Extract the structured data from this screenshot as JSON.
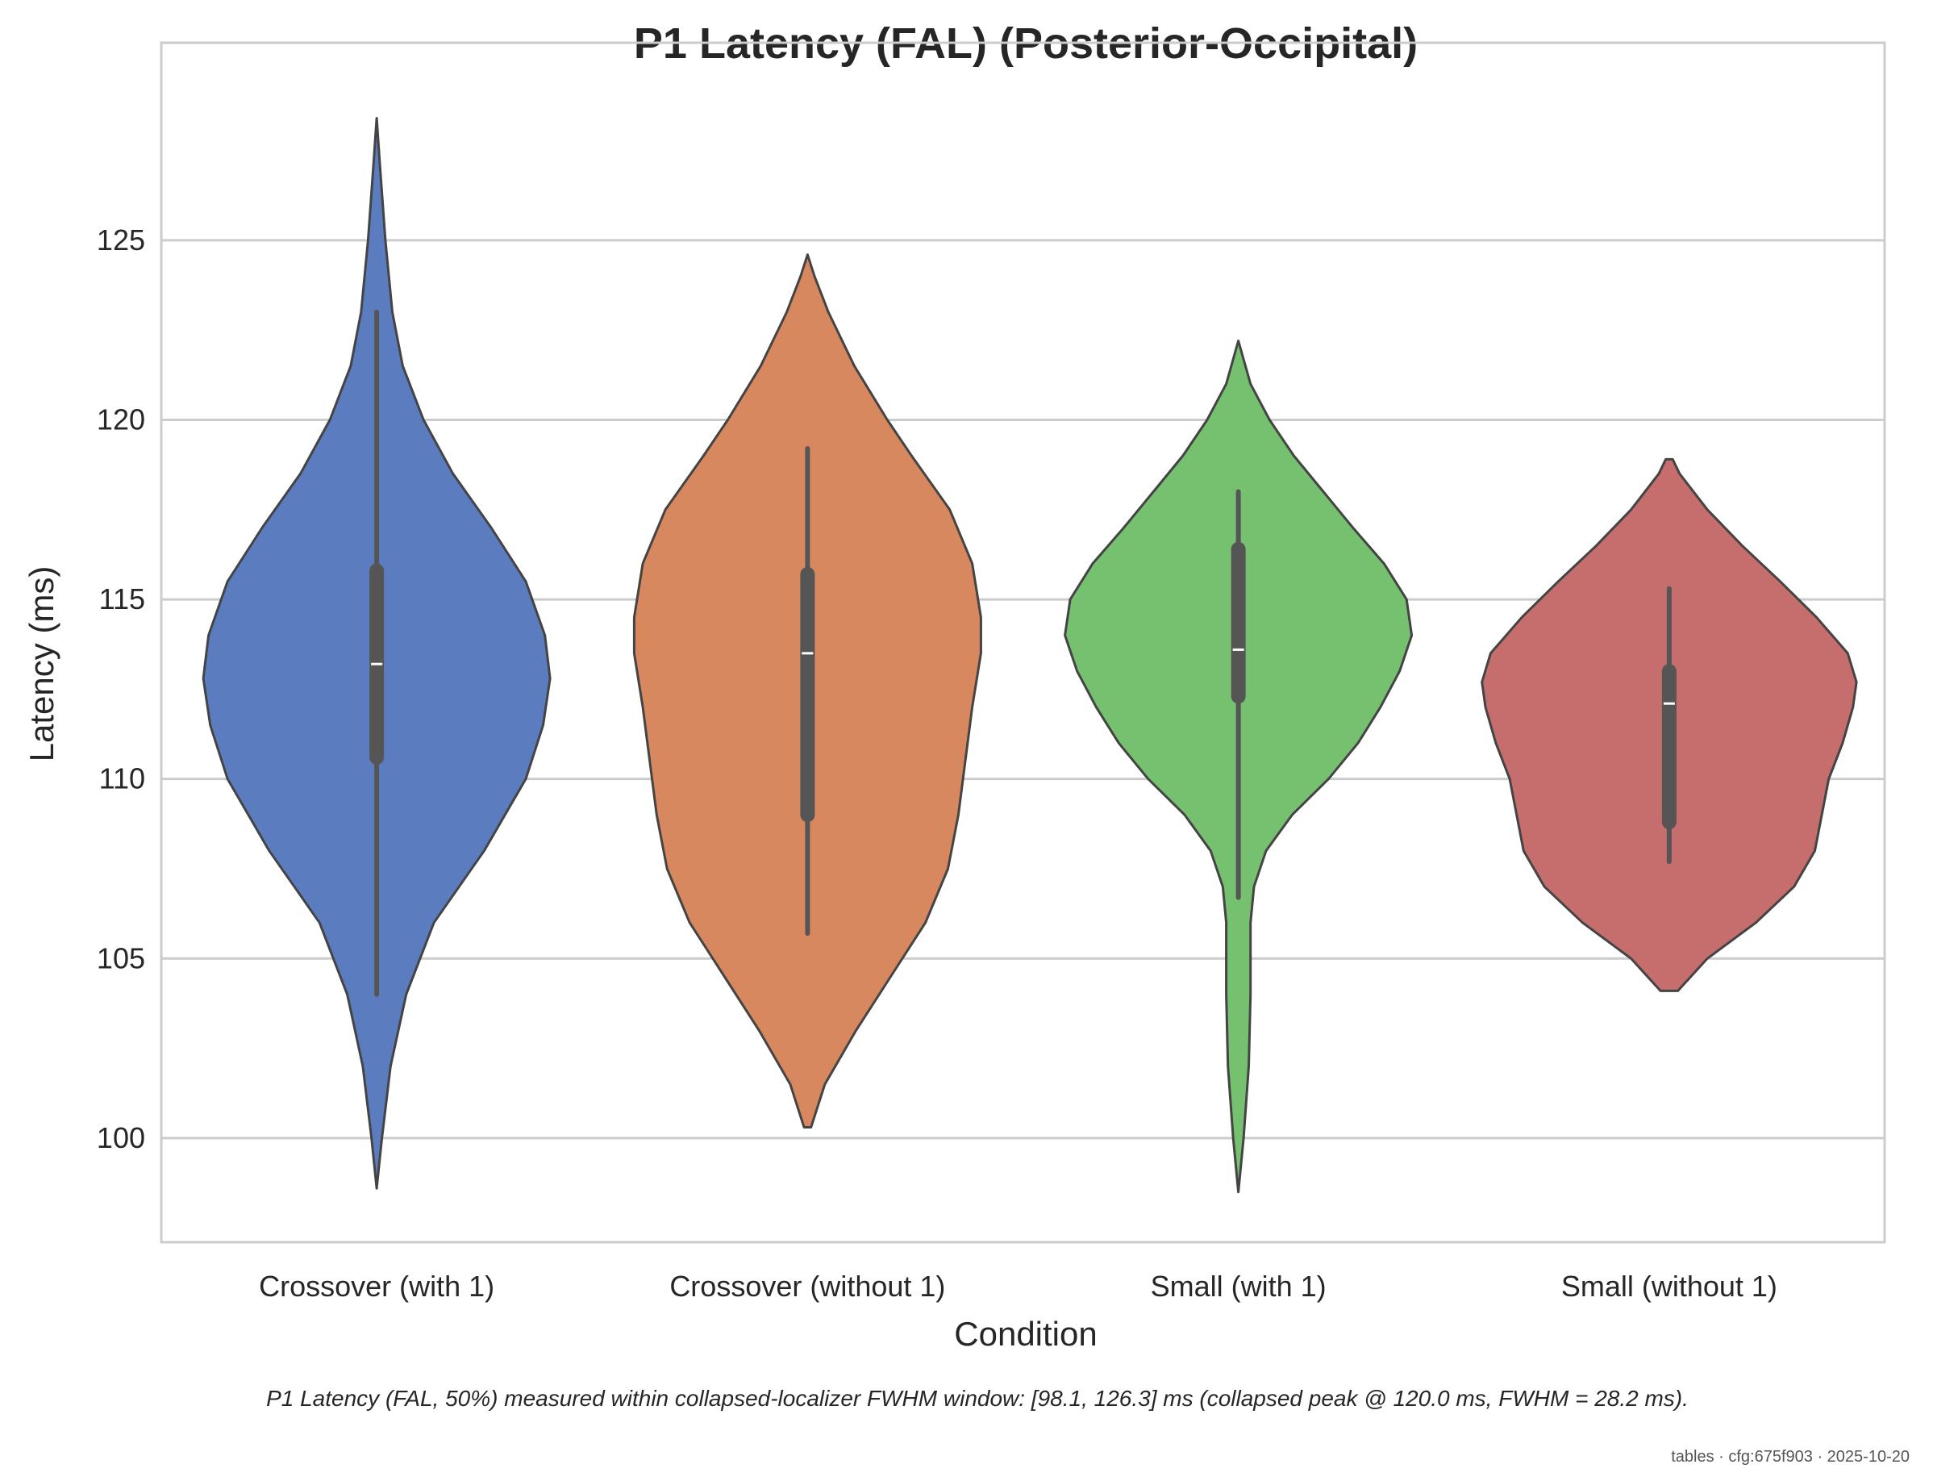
{
  "chart_data": {
    "type": "violin",
    "title": "P1 Latency (FAL) (Posterior-Occipital)",
    "xlabel": "Condition",
    "ylabel": "Latency (ms)",
    "ylim": [
      97.1,
      130.5
    ],
    "yticks": [
      100,
      105,
      110,
      115,
      120,
      125
    ],
    "grid": "horizontal",
    "categories": [
      "Crossover (with 1)",
      "Crossover (without 1)",
      "Small (with 1)",
      "Small (without 1)"
    ],
    "colors": [
      "#5b7dc0",
      "#d8885e",
      "#76c16f",
      "#c66d6d"
    ],
    "violins": [
      {
        "name": "Crossover (with 1)",
        "min": 104.0,
        "q1": 110.6,
        "median": 113.2,
        "q3": 115.8,
        "max": 123.0,
        "range": [
          98.6,
          128.4
        ],
        "density": [
          [
            98.6,
            0.0
          ],
          [
            100.0,
            0.03
          ],
          [
            102.0,
            0.08
          ],
          [
            104.0,
            0.17
          ],
          [
            106.0,
            0.33
          ],
          [
            108.0,
            0.62
          ],
          [
            110.0,
            0.86
          ],
          [
            111.5,
            0.96
          ],
          [
            112.8,
            1.0
          ],
          [
            114.0,
            0.97
          ],
          [
            115.5,
            0.86
          ],
          [
            117.0,
            0.66
          ],
          [
            118.5,
            0.44
          ],
          [
            120.0,
            0.27
          ],
          [
            121.5,
            0.15
          ],
          [
            123.0,
            0.09
          ],
          [
            125.0,
            0.05
          ],
          [
            127.0,
            0.02
          ],
          [
            128.4,
            0.0
          ]
        ]
      },
      {
        "name": "Crossover (without 1)",
        "min": 105.7,
        "q1": 109.0,
        "median": 113.5,
        "q3": 115.7,
        "max": 119.2,
        "range": [
          100.3,
          124.6
        ],
        "density": [
          [
            100.3,
            0.02
          ],
          [
            101.5,
            0.1
          ],
          [
            103.0,
            0.28
          ],
          [
            104.5,
            0.48
          ],
          [
            106.0,
            0.68
          ],
          [
            107.5,
            0.81
          ],
          [
            109.0,
            0.87
          ],
          [
            110.5,
            0.91
          ],
          [
            112.0,
            0.95
          ],
          [
            113.5,
            1.0
          ],
          [
            114.5,
            1.0
          ],
          [
            116.0,
            0.95
          ],
          [
            117.5,
            0.82
          ],
          [
            119.0,
            0.6
          ],
          [
            120.0,
            0.46
          ],
          [
            121.5,
            0.27
          ],
          [
            123.0,
            0.12
          ],
          [
            124.0,
            0.04
          ],
          [
            124.6,
            0.0
          ]
        ]
      },
      {
        "name": "Small (with 1)",
        "min": 106.7,
        "q1": 112.3,
        "median": 113.6,
        "q3": 116.4,
        "max": 118.0,
        "range": [
          98.5,
          122.2
        ],
        "density": [
          [
            98.5,
            0.0
          ],
          [
            100.0,
            0.03
          ],
          [
            102.0,
            0.06
          ],
          [
            104.0,
            0.07
          ],
          [
            106.0,
            0.07
          ],
          [
            107.0,
            0.09
          ],
          [
            108.0,
            0.16
          ],
          [
            109.0,
            0.31
          ],
          [
            110.0,
            0.52
          ],
          [
            111.0,
            0.69
          ],
          [
            112.0,
            0.82
          ],
          [
            113.0,
            0.93
          ],
          [
            114.0,
            1.0
          ],
          [
            115.0,
            0.97
          ],
          [
            116.0,
            0.84
          ],
          [
            117.0,
            0.66
          ],
          [
            118.0,
            0.49
          ],
          [
            119.0,
            0.32
          ],
          [
            120.0,
            0.18
          ],
          [
            121.0,
            0.07
          ],
          [
            122.2,
            0.0
          ]
        ]
      },
      {
        "name": "Small (without 1)",
        "min": 107.7,
        "q1": 108.8,
        "median": 112.1,
        "q3": 113.0,
        "max": 115.3,
        "range": [
          104.1,
          118.9
        ],
        "density": [
          [
            104.1,
            0.05
          ],
          [
            105.0,
            0.22
          ],
          [
            106.0,
            0.5
          ],
          [
            107.0,
            0.72
          ],
          [
            108.0,
            0.84
          ],
          [
            109.0,
            0.88
          ],
          [
            110.0,
            0.92
          ],
          [
            111.0,
            1.0
          ],
          [
            112.0,
            1.06
          ],
          [
            112.7,
            1.08
          ],
          [
            113.5,
            1.03
          ],
          [
            114.5,
            0.85
          ],
          [
            115.5,
            0.64
          ],
          [
            116.5,
            0.42
          ],
          [
            117.5,
            0.22
          ],
          [
            118.5,
            0.06
          ],
          [
            118.9,
            0.02
          ]
        ]
      }
    ]
  },
  "caption": "P1 Latency (FAL, 50%) measured within collapsed-localizer FWHM window: [98.1, 126.3] ms (collapsed peak @ 120.0 ms, FWHM = 28.2 ms).",
  "footer": "tables · cfg:675f903 · 2025-10-20"
}
